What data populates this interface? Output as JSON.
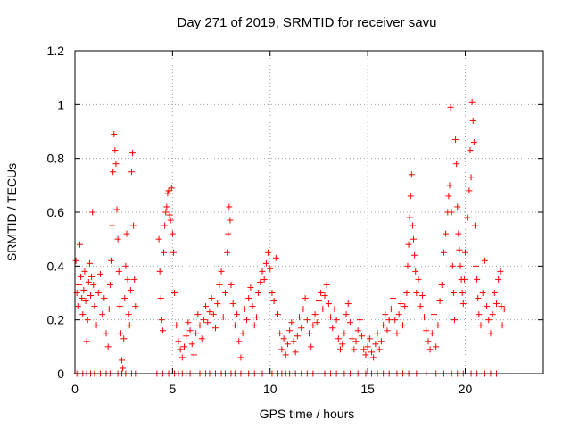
{
  "chart_data": {
    "type": "scatter",
    "title": "Day 271 of 2019, SRMTID for receiver savu",
    "xlabel": "GPS time / hours",
    "ylabel": "SRMTID / TECUs",
    "xlim": [
      0,
      24
    ],
    "ylim": [
      0,
      1.2
    ],
    "x_ticks": [
      0,
      5,
      10,
      15,
      20
    ],
    "x_tick_labels": [
      "0",
      "5",
      "10",
      "15",
      "20"
    ],
    "y_ticks": [
      0,
      0.2,
      0.4,
      0.6,
      0.8,
      1.0,
      1.2
    ],
    "y_tick_labels": [
      "0",
      "0.2",
      "0.4",
      "0.6",
      "0.8",
      "1",
      "1.2"
    ],
    "grid": true,
    "marker": "+",
    "color": "#ff0000",
    "series": [
      {
        "name": "SRMTID",
        "points": [
          [
            0.05,
            0.42
          ],
          [
            0.1,
            0.3
          ],
          [
            0.15,
            0.25
          ],
          [
            0.2,
            0.33
          ],
          [
            0.25,
            0.48
          ],
          [
            0.3,
            0.36
          ],
          [
            0.35,
            0.28
          ],
          [
            0.4,
            0.22
          ],
          [
            0.45,
            0.31
          ],
          [
            0.5,
            0.38
          ],
          [
            0.55,
            0.27
          ],
          [
            0.6,
            0.12
          ],
          [
            0.65,
            0.2
          ],
          [
            0.7,
            0.34
          ],
          [
            0.75,
            0.41
          ],
          [
            0.8,
            0.29
          ],
          [
            0.85,
            0.36
          ],
          [
            0.9,
            0.6
          ],
          [
            0.95,
            0.33
          ],
          [
            1.0,
            0.25
          ],
          [
            1.1,
            0.18
          ],
          [
            1.2,
            0.3
          ],
          [
            1.3,
            0.37
          ],
          [
            1.4,
            0.22
          ],
          [
            1.5,
            0.28
          ],
          [
            1.6,
            0.15
          ],
          [
            1.7,
            0.1
          ],
          [
            1.75,
            0.24
          ],
          [
            1.8,
            0.33
          ],
          [
            1.85,
            0.42
          ],
          [
            1.9,
            0.55
          ],
          [
            1.95,
            0.75
          ],
          [
            2.0,
            0.89
          ],
          [
            2.05,
            0.83
          ],
          [
            2.1,
            0.78
          ],
          [
            2.15,
            0.61
          ],
          [
            2.2,
            0.5
          ],
          [
            2.25,
            0.38
          ],
          [
            2.3,
            0.25
          ],
          [
            2.35,
            0.15
          ],
          [
            2.4,
            0.05
          ],
          [
            2.45,
            0.02
          ],
          [
            2.5,
            0.13
          ],
          [
            2.55,
            0.28
          ],
          [
            2.6,
            0.4
          ],
          [
            2.65,
            0.52
          ],
          [
            2.7,
            0.35
          ],
          [
            2.75,
            0.22
          ],
          [
            2.8,
            0.18
          ],
          [
            2.85,
            0.31
          ],
          [
            2.9,
            0.75
          ],
          [
            2.95,
            0.82
          ],
          [
            3.0,
            0.55
          ],
          [
            3.05,
            0.35
          ],
          [
            3.1,
            0.25
          ],
          [
            4.3,
            0.5
          ],
          [
            4.35,
            0.38
          ],
          [
            4.4,
            0.28
          ],
          [
            4.45,
            0.2
          ],
          [
            4.5,
            0.16
          ],
          [
            4.55,
            0.45
          ],
          [
            4.6,
            0.55
          ],
          [
            4.65,
            0.6
          ],
          [
            4.7,
            0.62
          ],
          [
            4.75,
            0.67
          ],
          [
            4.8,
            0.68
          ],
          [
            4.85,
            0.59
          ],
          [
            4.9,
            0.57
          ],
          [
            4.95,
            0.69
          ],
          [
            5.0,
            0.52
          ],
          [
            5.05,
            0.45
          ],
          [
            5.1,
            0.3
          ],
          [
            5.2,
            0.18
          ],
          [
            5.3,
            0.12
          ],
          [
            5.4,
            0.09
          ],
          [
            5.5,
            0.06
          ],
          [
            5.6,
            0.1
          ],
          [
            5.7,
            0.14
          ],
          [
            5.8,
            0.19
          ],
          [
            5.9,
            0.16
          ],
          [
            6.0,
            0.11
          ],
          [
            6.1,
            0.07
          ],
          [
            6.2,
            0.15
          ],
          [
            6.3,
            0.22
          ],
          [
            6.4,
            0.18
          ],
          [
            6.5,
            0.13
          ],
          [
            6.6,
            0.2
          ],
          [
            6.7,
            0.25
          ],
          [
            6.8,
            0.19
          ],
          [
            6.9,
            0.23
          ],
          [
            7.0,
            0.28
          ],
          [
            7.1,
            0.22
          ],
          [
            7.2,
            0.17
          ],
          [
            7.3,
            0.26
          ],
          [
            7.4,
            0.33
          ],
          [
            7.5,
            0.38
          ],
          [
            7.6,
            0.21
          ],
          [
            7.7,
            0.3
          ],
          [
            7.8,
            0.45
          ],
          [
            7.85,
            0.52
          ],
          [
            7.9,
            0.62
          ],
          [
            7.95,
            0.57
          ],
          [
            8.0,
            0.33
          ],
          [
            8.1,
            0.26
          ],
          [
            8.2,
            0.18
          ],
          [
            8.3,
            0.22
          ],
          [
            8.4,
            0.12
          ],
          [
            8.5,
            0.06
          ],
          [
            8.6,
            0.15
          ],
          [
            8.7,
            0.24
          ],
          [
            8.8,
            0.2
          ],
          [
            8.9,
            0.28
          ],
          [
            9.0,
            0.32
          ],
          [
            9.1,
            0.25
          ],
          [
            9.2,
            0.18
          ],
          [
            9.3,
            0.21
          ],
          [
            9.4,
            0.3
          ],
          [
            9.5,
            0.34
          ],
          [
            9.6,
            0.38
          ],
          [
            9.7,
            0.35
          ],
          [
            9.8,
            0.41
          ],
          [
            9.9,
            0.45
          ],
          [
            10.0,
            0.39
          ],
          [
            10.1,
            0.3
          ],
          [
            10.2,
            0.27
          ],
          [
            10.3,
            0.43
          ],
          [
            10.4,
            0.22
          ],
          [
            10.5,
            0.15
          ],
          [
            10.6,
            0.09
          ],
          [
            10.7,
            0.13
          ],
          [
            10.8,
            0.07
          ],
          [
            10.9,
            0.11
          ],
          [
            11.0,
            0.16
          ],
          [
            11.1,
            0.19
          ],
          [
            11.2,
            0.12
          ],
          [
            11.3,
            0.08
          ],
          [
            11.4,
            0.14
          ],
          [
            11.5,
            0.21
          ],
          [
            11.6,
            0.17
          ],
          [
            11.7,
            0.24
          ],
          [
            11.8,
            0.28
          ],
          [
            11.9,
            0.2
          ],
          [
            12.0,
            0.15
          ],
          [
            12.1,
            0.1
          ],
          [
            12.2,
            0.18
          ],
          [
            12.3,
            0.22
          ],
          [
            12.4,
            0.19
          ],
          [
            12.5,
            0.27
          ],
          [
            12.6,
            0.3
          ],
          [
            12.7,
            0.24
          ],
          [
            12.8,
            0.29
          ],
          [
            12.9,
            0.33
          ],
          [
            13.0,
            0.26
          ],
          [
            13.1,
            0.21
          ],
          [
            13.2,
            0.17
          ],
          [
            13.3,
            0.24
          ],
          [
            13.4,
            0.2
          ],
          [
            13.5,
            0.13
          ],
          [
            13.6,
            0.09
          ],
          [
            13.7,
            0.11
          ],
          [
            13.8,
            0.15
          ],
          [
            13.9,
            0.22
          ],
          [
            14.0,
            0.26
          ],
          [
            14.1,
            0.19
          ],
          [
            14.2,
            0.13
          ],
          [
            14.3,
            0.09
          ],
          [
            14.4,
            0.12
          ],
          [
            14.5,
            0.16
          ],
          [
            14.6,
            0.2
          ],
          [
            14.7,
            0.14
          ],
          [
            14.8,
            0.09
          ],
          [
            14.9,
            0.07
          ],
          [
            15.0,
            0.1
          ],
          [
            15.1,
            0.13
          ],
          [
            15.2,
            0.08
          ],
          [
            15.3,
            0.06
          ],
          [
            15.4,
            0.11
          ],
          [
            15.5,
            0.15
          ],
          [
            15.6,
            0.09
          ],
          [
            15.7,
            0.12
          ],
          [
            15.8,
            0.18
          ],
          [
            15.9,
            0.22
          ],
          [
            16.0,
            0.16
          ],
          [
            16.1,
            0.2
          ],
          [
            16.2,
            0.24
          ],
          [
            16.3,
            0.28
          ],
          [
            16.4,
            0.2
          ],
          [
            16.5,
            0.15
          ],
          [
            16.6,
            0.22
          ],
          [
            16.7,
            0.26
          ],
          [
            16.8,
            0.18
          ],
          [
            16.9,
            0.25
          ],
          [
            17.0,
            0.3
          ],
          [
            17.05,
            0.4
          ],
          [
            17.1,
            0.48
          ],
          [
            17.15,
            0.58
          ],
          [
            17.2,
            0.66
          ],
          [
            17.25,
            0.74
          ],
          [
            17.3,
            0.55
          ],
          [
            17.35,
            0.5
          ],
          [
            17.4,
            0.44
          ],
          [
            17.45,
            0.38
          ],
          [
            17.5,
            0.3
          ],
          [
            17.6,
            0.35
          ],
          [
            17.7,
            0.25
          ],
          [
            17.8,
            0.29
          ],
          [
            17.9,
            0.21
          ],
          [
            18.0,
            0.16
          ],
          [
            18.1,
            0.12
          ],
          [
            18.2,
            0.09
          ],
          [
            18.3,
            0.15
          ],
          [
            18.4,
            0.22
          ],
          [
            18.5,
            0.1
          ],
          [
            18.6,
            0.18
          ],
          [
            18.7,
            0.27
          ],
          [
            18.8,
            0.33
          ],
          [
            18.9,
            0.45
          ],
          [
            19.0,
            0.52
          ],
          [
            19.1,
            0.6
          ],
          [
            19.15,
            0.66
          ],
          [
            19.2,
            0.7
          ],
          [
            19.25,
            0.99
          ],
          [
            19.3,
            0.6
          ],
          [
            19.35,
            0.4
          ],
          [
            19.4,
            0.3
          ],
          [
            19.45,
            0.2
          ],
          [
            19.5,
            0.87
          ],
          [
            19.55,
            0.78
          ],
          [
            19.6,
            0.62
          ],
          [
            19.65,
            0.52
          ],
          [
            19.7,
            0.46
          ],
          [
            19.75,
            0.4
          ],
          [
            19.8,
            0.35
          ],
          [
            19.85,
            0.3
          ],
          [
            19.9,
            0.26
          ],
          [
            19.95,
            0.35
          ],
          [
            20.0,
            0.45
          ],
          [
            20.1,
            0.58
          ],
          [
            20.2,
            0.68
          ],
          [
            20.25,
            0.83
          ],
          [
            20.3,
            0.73
          ],
          [
            20.35,
            1.01
          ],
          [
            20.4,
            0.94
          ],
          [
            20.45,
            0.86
          ],
          [
            20.5,
            0.55
          ],
          [
            20.55,
            0.4
          ],
          [
            20.6,
            0.35
          ],
          [
            20.65,
            0.28
          ],
          [
            20.7,
            0.22
          ],
          [
            20.8,
            0.18
          ],
          [
            20.9,
            0.3
          ],
          [
            21.0,
            0.42
          ],
          [
            21.1,
            0.25
          ],
          [
            21.2,
            0.2
          ],
          [
            21.3,
            0.15
          ],
          [
            21.4,
            0.22
          ],
          [
            21.5,
            0.3
          ],
          [
            21.6,
            0.26
          ],
          [
            21.7,
            0.35
          ],
          [
            21.8,
            0.38
          ],
          [
            21.85,
            0.25
          ],
          [
            21.9,
            0.18
          ],
          [
            22.0,
            0.24
          ]
        ]
      }
    ],
    "zero_points_x": [
      0.1,
      0.2,
      0.4,
      0.6,
      0.8,
      1.0,
      1.3,
      1.6,
      1.8,
      2.2,
      2.4,
      2.6,
      2.9,
      3.1,
      4.2,
      4.5,
      4.8,
      5.1,
      5.3,
      5.5,
      5.7,
      5.9,
      6.1,
      6.4,
      6.7,
      6.9,
      7.2,
      7.5,
      7.7,
      8.0,
      8.2,
      8.5,
      8.9,
      9.2,
      9.6,
      10.1,
      10.4,
      10.6,
      10.8,
      11.0,
      11.3,
      11.6,
      11.9,
      12.2,
      12.5,
      12.8,
      13.1,
      13.4,
      13.8,
      14.1,
      14.5,
      14.9,
      15.2,
      15.5,
      15.8,
      16.1,
      16.5,
      16.8,
      17.1,
      17.5,
      18.0,
      18.5,
      18.9,
      19.3,
      19.6,
      19.9,
      20.3,
      20.6,
      21.0,
      21.3,
      21.6
    ]
  }
}
